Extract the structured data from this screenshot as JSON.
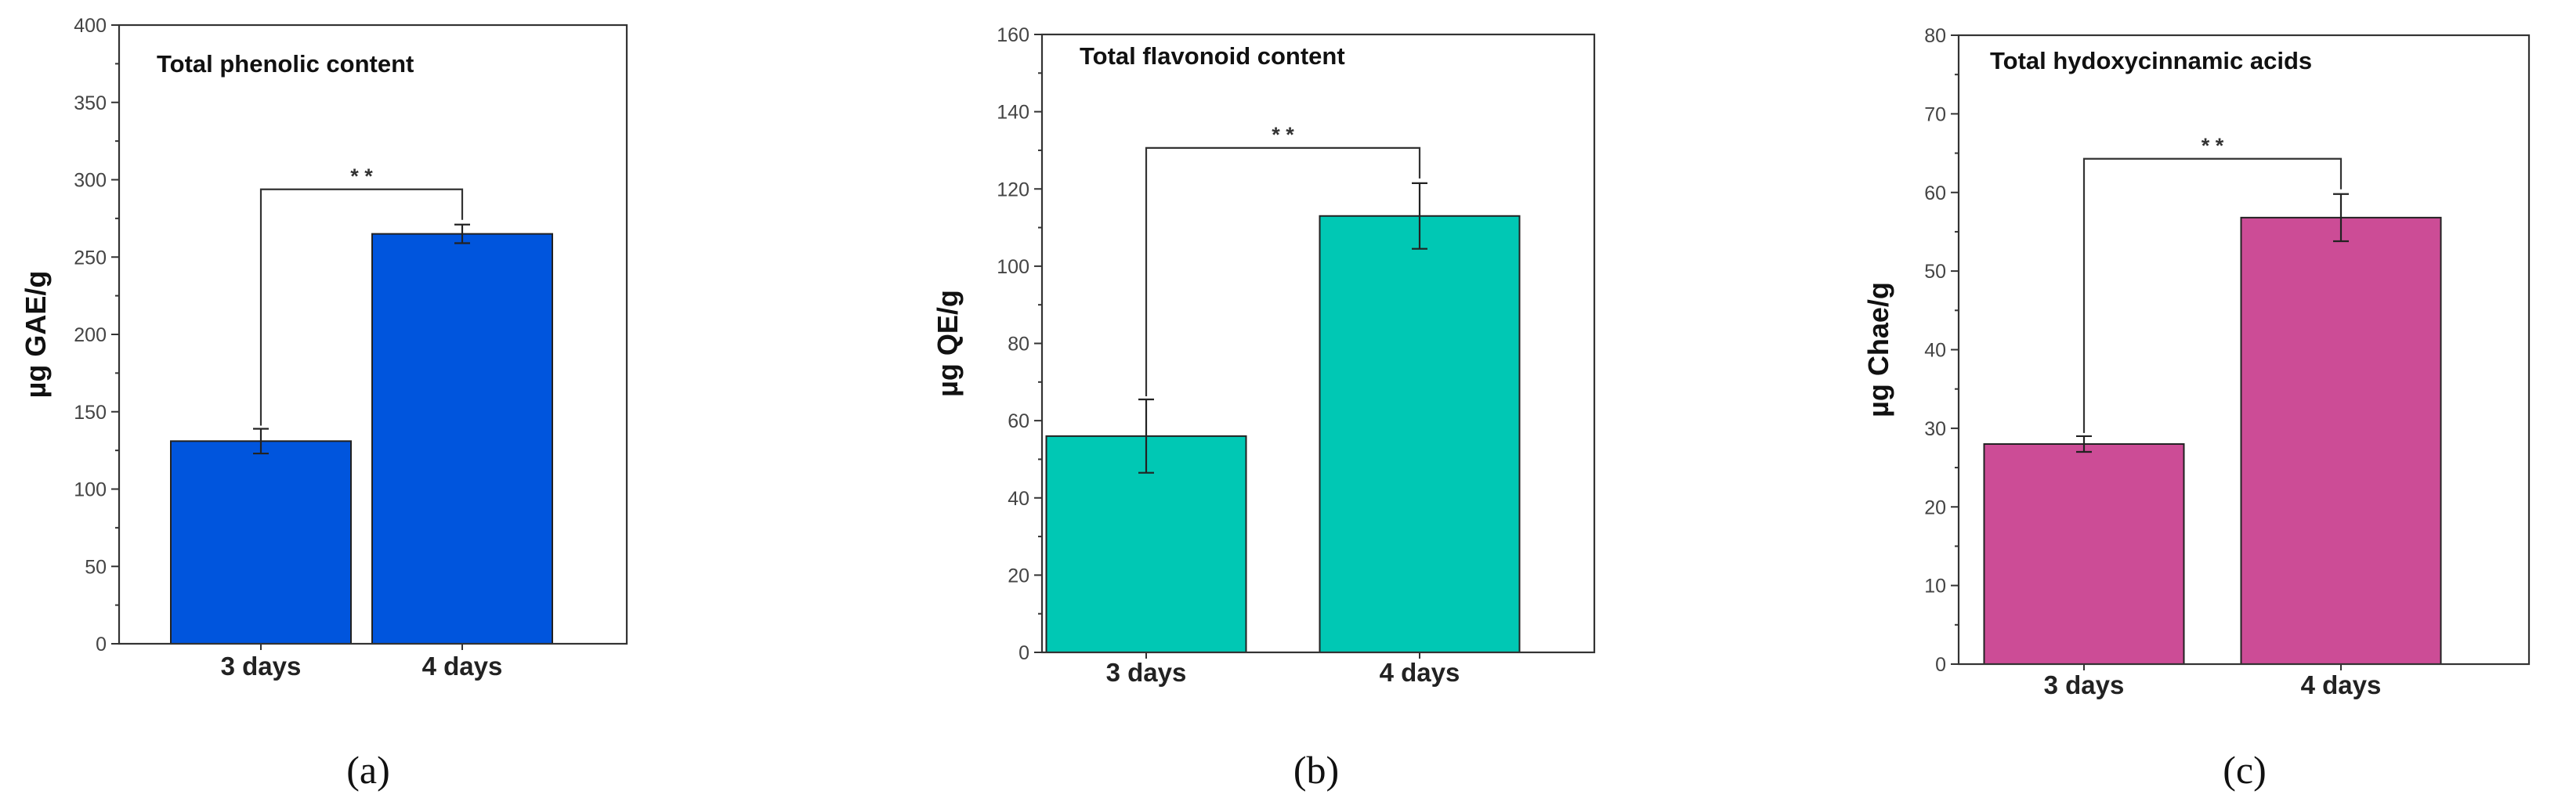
{
  "chart_data": [
    {
      "type": "bar",
      "title": "Total phenolic content",
      "ylabel": "µg GAE/g",
      "xlabel": "",
      "panel_label": "(a)",
      "categories": [
        "3 days",
        "4 days"
      ],
      "values": [
        131,
        265
      ],
      "errors": [
        8,
        6
      ],
      "ylim": [
        0,
        400
      ],
      "yticks": [
        0,
        50,
        100,
        150,
        200,
        250,
        300,
        350,
        400
      ],
      "bar_color": "#0055dd",
      "significance": "* *",
      "grid": false
    },
    {
      "type": "bar",
      "title": "Total flavonoid content",
      "ylabel": "µg QE/g",
      "xlabel": "",
      "panel_label": "(b)",
      "categories": [
        "3 days",
        "4 days"
      ],
      "values": [
        56,
        113
      ],
      "errors": [
        9.5,
        8.5
      ],
      "ylim": [
        0,
        160
      ],
      "yticks": [
        0,
        20,
        40,
        60,
        80,
        100,
        120,
        140,
        160
      ],
      "bar_color": "#00c8b4",
      "significance": "* *",
      "grid": false
    },
    {
      "type": "bar",
      "title": "Total hydoxycinnamic acids",
      "ylabel": "µg  Chae/g",
      "xlabel": "",
      "panel_label": "(c)",
      "categories": [
        "3 days",
        "4 days"
      ],
      "values": [
        28,
        56.8
      ],
      "errors": [
        1,
        3
      ],
      "ylim": [
        0,
        80
      ],
      "yticks": [
        0,
        10,
        20,
        30,
        40,
        50,
        60,
        70,
        80
      ],
      "bar_color": "#cc4c96",
      "significance": "* *",
      "grid": false
    }
  ]
}
